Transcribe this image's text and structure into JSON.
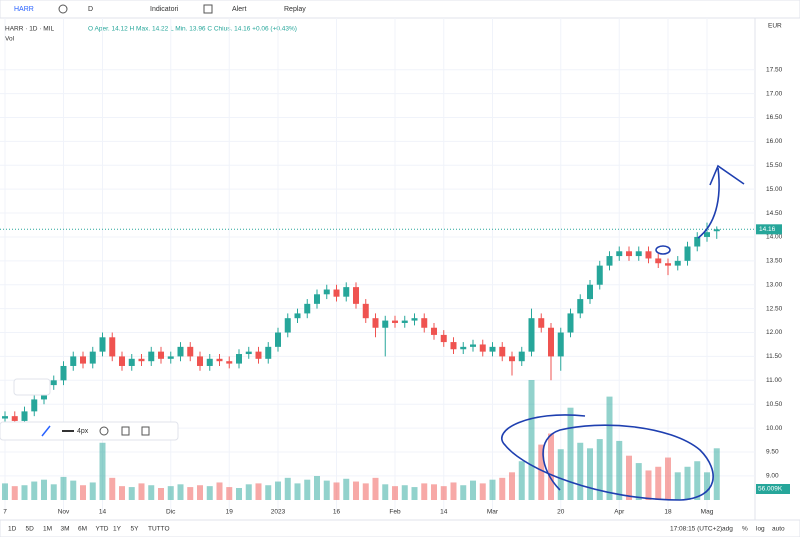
{
  "ui": {
    "symbol": "HARR",
    "interval": "D",
    "toolbar": [
      "Indicatori",
      "Alert",
      "Replay"
    ],
    "legend": "HARR · 1D · MIL",
    "ohlc": "O Aper. 14.12  H Max. 14.22  L Min. 13.96  C Chius. 14.16 +0.06 (+0.43%)",
    "vol": "Vol",
    "currency": "EUR",
    "last_volume": "56.009K",
    "drawing_tools": [
      "4px"
    ],
    "timeframes": [
      "1D",
      "5D",
      "1M",
      "3M",
      "6M",
      "YTD",
      "1Y",
      "5Y",
      "TUTTO"
    ],
    "clock": "17:08:15 (UTC+2)",
    "options": [
      "adg",
      "%",
      "log",
      "auto"
    ]
  },
  "chart_data": {
    "type": "candlestick",
    "up_color": "#26a69a",
    "down_color": "#ef5350",
    "categories": [
      "7",
      null,
      null,
      null,
      null,
      null,
      "Nov",
      null,
      null,
      null,
      "14",
      null,
      null,
      null,
      null,
      null,
      null,
      "Dic",
      null,
      null,
      null,
      null,
      null,
      "19",
      null,
      null,
      null,
      null,
      "2023",
      null,
      null,
      null,
      null,
      null,
      "16",
      null,
      null,
      null,
      null,
      null,
      "Feb",
      null,
      null,
      null,
      null,
      "14",
      null,
      null,
      null,
      null,
      "Mar",
      null,
      null,
      null,
      null,
      null,
      null,
      "20",
      null,
      null,
      null,
      null,
      null,
      "Apr",
      null,
      null,
      null,
      null,
      "18",
      null,
      null,
      null,
      "Mag",
      null
    ],
    "open": [
      10.2,
      10.25,
      10.15,
      10.35,
      10.6,
      10.9,
      11.0,
      11.3,
      11.5,
      11.35,
      11.6,
      11.9,
      11.5,
      11.3,
      11.45,
      11.4,
      11.6,
      11.45,
      11.5,
      11.7,
      11.5,
      11.3,
      11.45,
      11.4,
      11.35,
      11.55,
      11.6,
      11.45,
      11.7,
      12.0,
      12.3,
      12.4,
      12.6,
      12.8,
      12.9,
      12.75,
      12.95,
      12.6,
      12.3,
      12.1,
      12.25,
      12.2,
      12.25,
      12.3,
      12.1,
      11.95,
      11.8,
      11.65,
      11.7,
      11.75,
      11.6,
      11.7,
      11.5,
      11.4,
      11.6,
      12.3,
      12.1,
      11.5,
      12.0,
      12.4,
      12.7,
      13.0,
      13.4,
      13.6,
      13.7,
      13.6,
      13.7,
      13.55,
      13.45,
      13.4,
      13.5,
      13.8,
      14.0,
      14.12
    ],
    "high": [
      10.35,
      10.35,
      10.45,
      10.7,
      11.0,
      11.1,
      11.4,
      11.6,
      11.6,
      11.7,
      12.0,
      12.0,
      11.6,
      11.55,
      11.55,
      11.7,
      11.7,
      11.6,
      11.8,
      11.8,
      11.6,
      11.55,
      11.55,
      11.5,
      11.65,
      11.7,
      11.7,
      11.8,
      12.1,
      12.4,
      12.5,
      12.7,
      12.9,
      13.0,
      13.0,
      13.05,
      13.05,
      12.7,
      12.4,
      12.35,
      12.35,
      12.35,
      12.4,
      12.4,
      12.2,
      12.05,
      11.9,
      11.8,
      11.85,
      11.85,
      11.8,
      11.8,
      11.6,
      11.7,
      12.5,
      12.4,
      12.2,
      12.1,
      12.5,
      12.8,
      13.1,
      13.5,
      13.7,
      13.8,
      13.8,
      13.8,
      13.8,
      13.65,
      13.55,
      13.6,
      13.9,
      14.1,
      14.3,
      14.22
    ],
    "low": [
      10.1,
      10.05,
      10.05,
      10.25,
      10.5,
      10.8,
      10.9,
      11.2,
      11.25,
      11.25,
      11.5,
      11.4,
      11.2,
      11.2,
      11.3,
      11.3,
      11.35,
      11.35,
      11.4,
      11.4,
      11.2,
      11.2,
      11.3,
      11.25,
      11.25,
      11.45,
      11.35,
      11.35,
      11.6,
      11.9,
      12.2,
      12.3,
      12.5,
      12.7,
      12.65,
      12.65,
      12.5,
      12.2,
      11.9,
      11.5,
      12.1,
      12.1,
      12.15,
      12.0,
      11.85,
      11.7,
      11.55,
      11.55,
      11.6,
      11.5,
      11.5,
      11.4,
      11.1,
      11.3,
      11.5,
      12.0,
      11.0,
      11.2,
      11.9,
      12.3,
      12.6,
      12.9,
      13.3,
      13.5,
      13.5,
      13.5,
      13.45,
      13.35,
      13.2,
      13.3,
      13.4,
      13.7,
      13.9,
      13.96
    ],
    "close": [
      10.25,
      10.15,
      10.35,
      10.6,
      10.9,
      11.0,
      11.3,
      11.5,
      11.35,
      11.6,
      11.9,
      11.5,
      11.3,
      11.45,
      11.4,
      11.6,
      11.45,
      11.5,
      11.7,
      11.5,
      11.3,
      11.45,
      11.4,
      11.35,
      11.55,
      11.6,
      11.45,
      11.7,
      12.0,
      12.3,
      12.4,
      12.6,
      12.8,
      12.9,
      12.75,
      12.95,
      12.6,
      12.3,
      12.1,
      12.25,
      12.2,
      12.25,
      12.3,
      12.1,
      11.95,
      11.8,
      11.65,
      11.7,
      11.75,
      11.6,
      11.7,
      11.5,
      11.4,
      11.6,
      12.3,
      12.1,
      11.5,
      12.0,
      12.4,
      12.7,
      13.0,
      13.4,
      13.6,
      13.7,
      13.6,
      13.7,
      13.55,
      13.45,
      13.4,
      13.5,
      13.8,
      14.0,
      14.1,
      14.16
    ],
    "volume": [
      18000,
      15000,
      16000,
      20000,
      22000,
      17000,
      25000,
      21000,
      16000,
      19000,
      62000,
      24000,
      15000,
      14000,
      18000,
      16000,
      13000,
      15000,
      17000,
      14000,
      16000,
      15000,
      19000,
      14000,
      13000,
      17000,
      18000,
      16000,
      20000,
      24000,
      18000,
      22000,
      26000,
      21000,
      19000,
      23000,
      20000,
      18000,
      24000,
      17000,
      15000,
      16000,
      14000,
      18000,
      17000,
      15000,
      19000,
      16000,
      21000,
      18000,
      22000,
      24000,
      30000,
      42000,
      130000,
      60000,
      72000,
      55000,
      100000,
      62000,
      56000,
      66000,
      112000,
      64000,
      48000,
      40000,
      32000,
      36000,
      46000,
      30000,
      36000,
      42000,
      30000,
      56009
    ],
    "ylim": [
      8.8,
      17.8
    ],
    "yticks": [
      {
        "value": 9,
        "label": "9.00"
      },
      {
        "value": 9.5,
        "label": "9.50"
      },
      {
        "value": 10,
        "label": "10.00"
      },
      {
        "value": 10.5,
        "label": "10.50"
      },
      {
        "value": 11,
        "label": "11.00"
      },
      {
        "value": 11.5,
        "label": "11.50"
      },
      {
        "value": 12,
        "label": "12.00"
      },
      {
        "value": 12.5,
        "label": "12.50"
      },
      {
        "value": 13,
        "label": "13.00"
      },
      {
        "value": 13.5,
        "label": "13.50"
      },
      {
        "value": 14,
        "label": "14.00"
      },
      {
        "value": 14.5,
        "label": "14.50"
      },
      {
        "value": 15,
        "label": "15.00"
      },
      {
        "value": 15.5,
        "label": "15.50"
      },
      {
        "value": 16,
        "label": "16.00"
      },
      {
        "value": 16.5,
        "label": "16.50"
      },
      {
        "value": 17,
        "label": "17.00"
      },
      {
        "value": 17.5,
        "label": "17.50"
      }
    ],
    "grid": true
  }
}
